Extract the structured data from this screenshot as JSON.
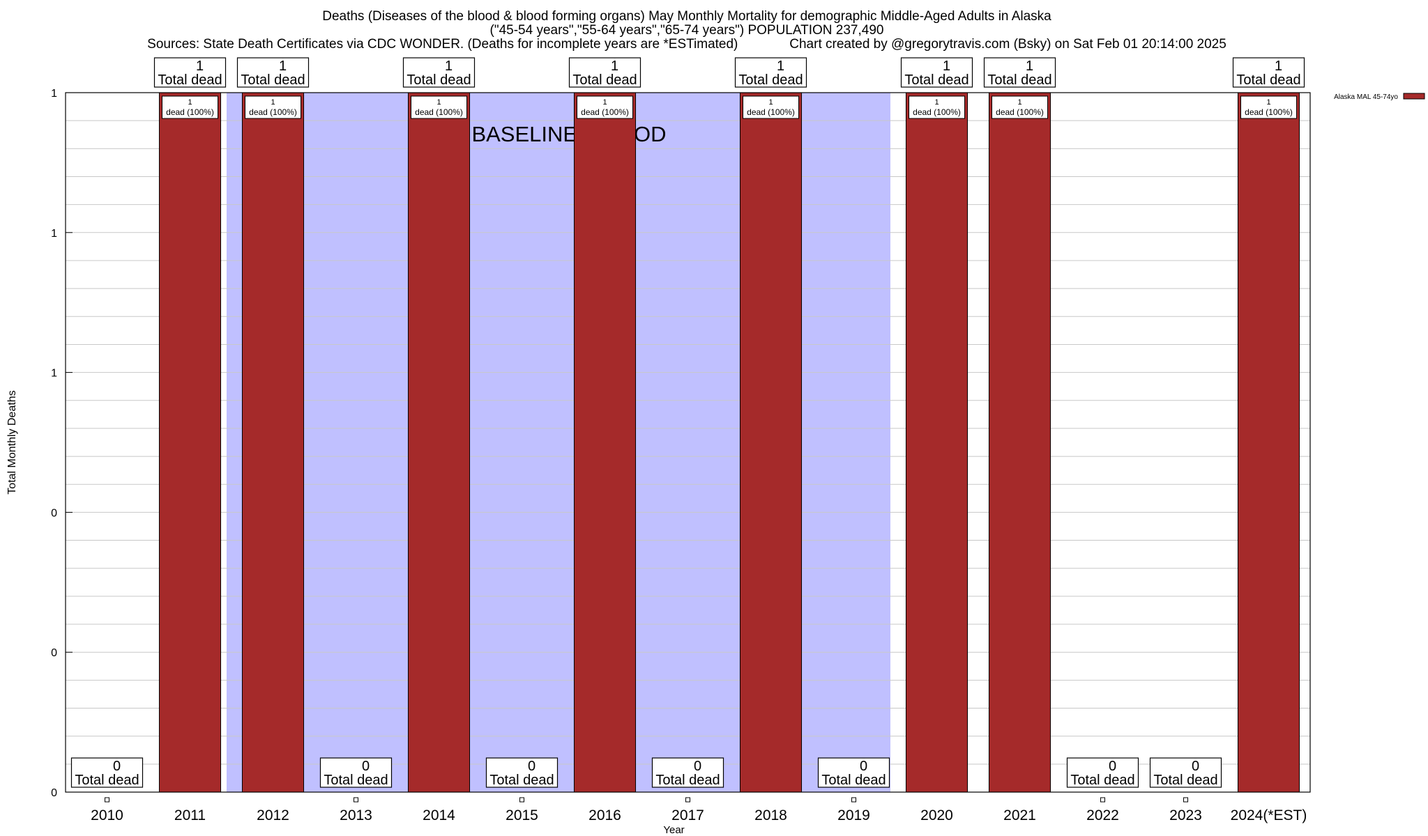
{
  "chart_data": {
    "type": "bar",
    "title_lines": [
      "Deaths (Diseases of the blood & blood forming organs) May Monthly Mortality for demographic Middle-Aged Adults in Alaska",
      "(\"45-54 years\",\"55-64 years\",\"65-74 years\") POPULATION 237,490",
      "Sources: State Death Certificates via CDC WONDER. (Deaths for incomplete years are *ESTimated)              Chart created by @gregorytravis.com (Bsky) on Sat Feb 01 20:14:00 2025"
    ],
    "xlabel": "Year",
    "ylabel": "Total Monthly Deaths",
    "categories": [
      "2010",
      "2011",
      "2012",
      "2013",
      "2014",
      "2015",
      "2016",
      "2017",
      "2018",
      "2019",
      "2020",
      "2021",
      "2022",
      "2023",
      "2024(*EST)"
    ],
    "series": [
      {
        "name": "Alaska MAL 45-74yo",
        "color": "#a52a2a",
        "values": [
          0,
          1,
          1,
          0,
          1,
          0,
          1,
          0,
          1,
          0,
          1,
          1,
          0,
          0,
          1
        ]
      }
    ],
    "total_labels": [
      "0\nTotal dead",
      "1\nTotal dead",
      "1\nTotal dead",
      "0\nTotal dead",
      "1\nTotal dead",
      "0\nTotal dead",
      "1\nTotal dead",
      "0\nTotal dead",
      "1\nTotal dead",
      "0\nTotal dead",
      "1\nTotal dead",
      "1\nTotal dead",
      "0\nTotal dead",
      "0\nTotal dead",
      "1\nTotal dead"
    ],
    "bar_labels": [
      "",
      "1\ndead (100%)",
      "1\ndead (100%)",
      "",
      "1\ndead (100%)",
      "",
      "1\ndead (100%)",
      "",
      "1\ndead (100%)",
      "",
      "1\ndead (100%)",
      "1\ndead (100%)",
      "",
      "",
      "1\ndead (100%)"
    ],
    "ylim": [
      0,
      1
    ],
    "yticks": [
      0,
      0.2,
      0.4,
      0.6,
      0.8,
      1
    ],
    "ytick_labels": [
      "0",
      "0",
      "0",
      "1",
      "1",
      "1"
    ],
    "baseline_period": {
      "label": "BASELINE PERIOD",
      "from": "2012",
      "to": "2019",
      "color": "#c0c0ff"
    },
    "grid": true,
    "legend_position": "top-right"
  }
}
